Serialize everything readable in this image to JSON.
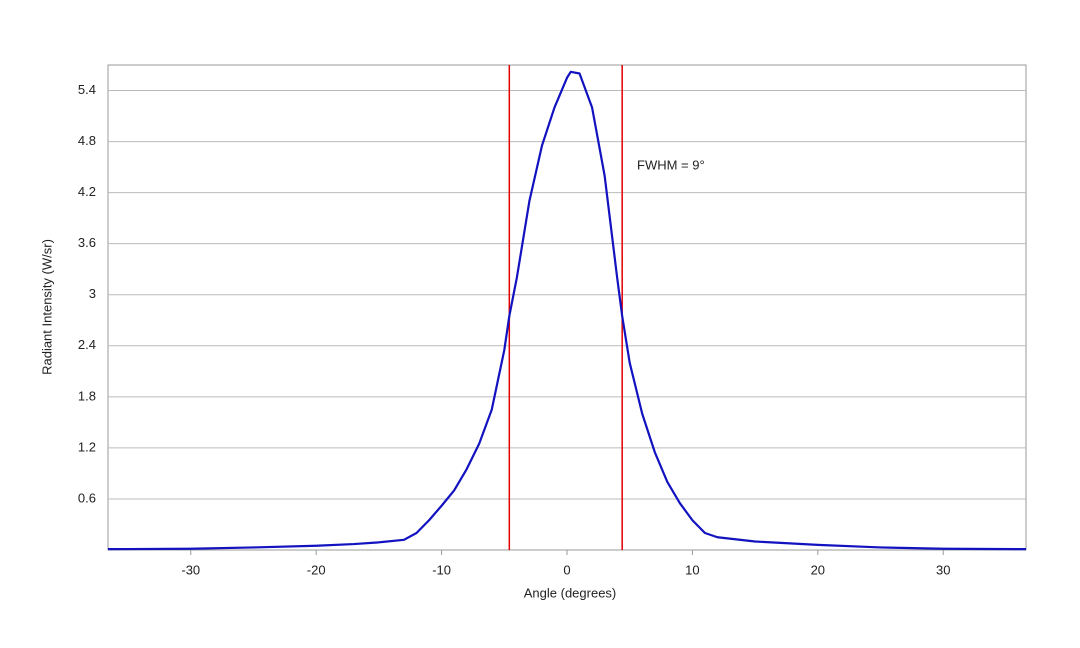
{
  "chart_data": {
    "type": "line",
    "x_label": "Angle (degrees)",
    "y_label": "Radiant Intensity (W/sr)",
    "annotation": "FWHM = 9°",
    "x": [
      -36.6,
      -30,
      -25,
      -20,
      -17,
      -15,
      -13,
      -12,
      -11,
      -10,
      -9,
      -8,
      -7,
      -6,
      -5,
      -4.6,
      -4,
      -3,
      -2,
      -1,
      0,
      0.3,
      1,
      2,
      3,
      4,
      4.4,
      5,
      6,
      7,
      8,
      9,
      10,
      11,
      12,
      15,
      20,
      25,
      30,
      36.6
    ],
    "series": [
      {
        "color": "#1212c0",
        "values": [
          0.01,
          0.015,
          0.03,
          0.05,
          0.07,
          0.09,
          0.12,
          0.2,
          0.35,
          0.52,
          0.7,
          0.95,
          1.25,
          1.65,
          2.35,
          2.75,
          3.2,
          4.1,
          4.75,
          5.2,
          5.55,
          5.62,
          5.6,
          5.2,
          4.4,
          3.2,
          2.75,
          2.2,
          1.6,
          1.15,
          0.8,
          0.55,
          0.35,
          0.2,
          0.15,
          0.1,
          0.06,
          0.03,
          0.015,
          0.01
        ]
      }
    ],
    "vlines": [
      -4.6,
      4.4
    ],
    "vline_color": "#e00000",
    "xlim": [
      -36.6,
      36.6
    ],
    "xticks": [
      -30,
      -20,
      -10,
      0,
      10,
      20,
      30
    ],
    "ylim": [
      0,
      5.7
    ],
    "yticks": [
      0.6,
      1.2,
      1.8,
      2.4,
      3.0,
      3.6,
      4.2,
      4.8,
      5.4
    ],
    "grid": true
  }
}
